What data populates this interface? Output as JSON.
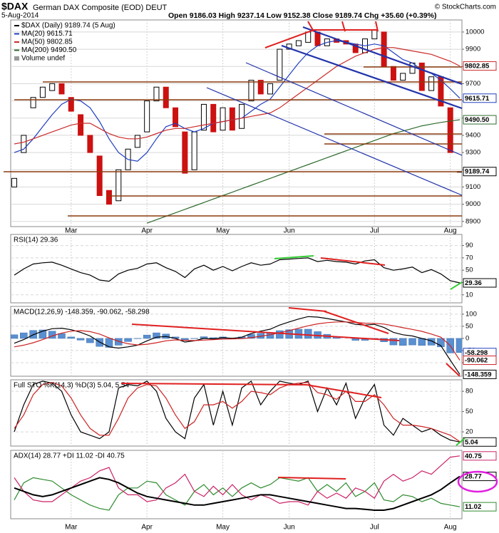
{
  "chart_data": [
    {
      "type": "candlestick",
      "title": "$DAX",
      "subtitle": "German DAX Composite (EOD) DEUT",
      "date": "5-Aug-2014",
      "quote": "Open 9186.03 High 9237.14 Low 9152.38 Close 9189.74 Chg +35.60 (+0.39%)",
      "source": "© StockCharts.com",
      "categories": [
        null,
        null,
        null,
        null,
        null,
        null,
        "Mar",
        null,
        null,
        null,
        null,
        null,
        null,
        null,
        "Apr",
        null,
        null,
        null,
        null,
        null,
        null,
        null,
        "May",
        null,
        null,
        null,
        null,
        null,
        null,
        "Jun",
        null,
        null,
        null,
        null,
        null,
        null,
        null,
        null,
        "Jul",
        null,
        null,
        null,
        null,
        null,
        null,
        null,
        "Aug",
        null
      ],
      "series": [
        {
          "name": "$DAX (Daily) 9189.74 (5 Aug)",
          "style": "candle",
          "color": "#000000",
          "down_color": "#cc1111",
          "open": [
            9100,
            9300,
            9560,
            9620,
            9660,
            9700,
            9620,
            9520,
            9400,
            9280,
            9080,
            9020,
            9200,
            9330,
            9420,
            9600,
            9680,
            9560,
            9420,
            9200,
            9430,
            9580,
            9430,
            9560,
            9440,
            9600,
            9720,
            9640,
            9720,
            9900,
            9920,
            9940,
            10000,
            9920,
            9960,
            9950,
            9930,
            9880,
            9960,
            10000,
            9800,
            9720,
            9760,
            9820,
            9660,
            9740,
            9560,
            9186.03
          ],
          "values": [
            9150,
            9400,
            9620,
            9680,
            9700,
            9640,
            9540,
            9400,
            9300,
            9050,
            9000,
            9200,
            9320,
            9400,
            9600,
            9680,
            9560,
            9450,
            9180,
            9420,
            9580,
            9420,
            9560,
            9430,
            9580,
            9720,
            9640,
            9700,
            9900,
            9930,
            9950,
            10000,
            9920,
            9960,
            9940,
            9930,
            9880,
            9960,
            10010,
            9800,
            9720,
            9760,
            9820,
            9660,
            9740,
            9570,
            9300,
            9189.74
          ]
        },
        {
          "name": "MA(20) 9615.71",
          "style": "line",
          "color": "#1f3fbf",
          "values": [
            9300,
            9320,
            9380,
            9450,
            9520,
            9580,
            9610,
            9600,
            9560,
            9480,
            9380,
            9300,
            9260,
            9250,
            9300,
            9380,
            9450,
            9470,
            9440,
            9420,
            9440,
            9470,
            9480,
            9490,
            9500,
            9540,
            9580,
            9610,
            9680,
            9750,
            9820,
            9880,
            9920,
            9940,
            9950,
            9940,
            9930,
            9920,
            9930,
            9920,
            9880,
            9840,
            9820,
            9780,
            9760,
            9720,
            9670,
            9615.71
          ]
        },
        {
          "name": "MA(50) 9802.85",
          "style": "line",
          "color": "#cc2a2a",
          "values": [
            9350,
            9360,
            9380,
            9400,
            9420,
            9440,
            9460,
            9470,
            9470,
            9440,
            9410,
            9390,
            9380,
            9380,
            9390,
            9410,
            9430,
            9440,
            9440,
            9450,
            9460,
            9470,
            9480,
            9490,
            9500,
            9510,
            9520,
            9530,
            9560,
            9600,
            9640,
            9680,
            9720,
            9760,
            9800,
            9830,
            9860,
            9880,
            9900,
            9910,
            9910,
            9900,
            9890,
            9880,
            9870,
            9850,
            9830,
            9802.85
          ]
        },
        {
          "name": "MA(200) 9490.50",
          "style": "line",
          "color": "#2e6b2e",
          "values": [
            null,
            null,
            null,
            null,
            null,
            null,
            null,
            null,
            null,
            null,
            null,
            null,
            null,
            null,
            8890,
            8910,
            8930,
            8950,
            8970,
            8990,
            9010,
            9030,
            9050,
            9070,
            9090,
            9110,
            9130,
            9150,
            9170,
            9190,
            9210,
            9230,
            9250,
            9270,
            9290,
            9310,
            9330,
            9350,
            9370,
            9390,
            9410,
            9425,
            9440,
            9455,
            9465,
            9475,
            9483,
            9490.5
          ]
        }
      ],
      "volume_legend": "Volume undef",
      "ylim": [
        8870,
        10070
      ],
      "yticks": [
        8900,
        9000,
        9100,
        9200,
        9300,
        9400,
        9500,
        9600,
        9700,
        9800,
        9900,
        10000
      ],
      "grid": true,
      "end_labels": [
        {
          "value": 9802.85,
          "label": "9802.85",
          "color": "#cc2a2a"
        },
        {
          "value": 9615.71,
          "label": "9615.71",
          "color": "#1f3fbf"
        },
        {
          "value": 9490.5,
          "label": "9490.50",
          "color": "#2e6b2e"
        },
        {
          "value": 9189.74,
          "label": "9189.74",
          "color": "#000000"
        }
      ]
    },
    {
      "type": "line",
      "title": "RSI(14) 29.36",
      "ylim": [
        -3,
        108
      ],
      "yticks": [
        10,
        30,
        50,
        70,
        90
      ],
      "grid": true,
      "series": [
        {
          "style": "line",
          "color": "#000000",
          "values": [
            42,
            52,
            60,
            62,
            63,
            58,
            52,
            46,
            42,
            34,
            32,
            44,
            50,
            53,
            60,
            62,
            54,
            48,
            38,
            52,
            58,
            50,
            56,
            49,
            56,
            62,
            58,
            60,
            67,
            68,
            69,
            70,
            64,
            66,
            64,
            63,
            60,
            65,
            67,
            54,
            50,
            52,
            55,
            46,
            51,
            44,
            33,
            29.36
          ]
        }
      ],
      "end_labels": [
        {
          "value": 29.36,
          "label": "29.36",
          "color": "#000000"
        }
      ]
    },
    {
      "type": "line",
      "title": "MACD(12,26,9) -148.359, -90.062, -58.298",
      "ylim": [
        -156,
        132
      ],
      "yticks": [
        -100,
        -50,
        0,
        50,
        100
      ],
      "grid": true,
      "series": [
        {
          "style": "histogram",
          "color": "#5a8fd0",
          "values": [
            15,
            23,
            33,
            35,
            30,
            20,
            6,
            -7,
            -18,
            -33,
            -37,
            -28,
            -13,
            -1,
            14,
            23,
            18,
            6,
            -7,
            -1,
            7,
            3,
            6,
            2,
            6,
            17,
            21,
            23,
            32,
            36,
            38,
            38,
            28,
            17,
            7,
            0,
            -8,
            -8,
            -4,
            -14,
            -27,
            -29,
            -27,
            -29,
            -28,
            -35,
            -60,
            -58.298
          ]
        },
        {
          "style": "line",
          "color": "#000000",
          "values": [
            -20,
            -5,
            15,
            30,
            40,
            42,
            36,
            25,
            10,
            -15,
            -35,
            -40,
            -35,
            -28,
            -10,
            5,
            8,
            0,
            -15,
            -10,
            0,
            -2,
            3,
            0,
            5,
            20,
            30,
            38,
            55,
            68,
            80,
            90,
            88,
            82,
            75,
            68,
            58,
            55,
            58,
            45,
            25,
            15,
            10,
            0,
            -10,
            -30,
            -90,
            -148.359
          ]
        },
        {
          "style": "line",
          "color": "#cc2222",
          "values": [
            -35,
            -28,
            -18,
            -5,
            10,
            22,
            30,
            32,
            28,
            18,
            2,
            -12,
            -22,
            -27,
            -24,
            -18,
            -10,
            -6,
            -8,
            -9,
            -7,
            -5,
            -3,
            -2,
            -1,
            3,
            9,
            15,
            23,
            32,
            42,
            52,
            60,
            65,
            68,
            68,
            66,
            63,
            62,
            59,
            52,
            44,
            37,
            29,
            18,
            5,
            -30,
            -90.062
          ]
        }
      ],
      "end_labels": [
        {
          "value": -58.298,
          "label": "-58.298",
          "color": "#1f3fbf"
        },
        {
          "value": -90.062,
          "label": "-90.062",
          "color": "#cc2222"
        },
        {
          "value": -148.359,
          "label": "-148.359",
          "color": "#000000"
        }
      ]
    },
    {
      "type": "line",
      "title": "Full STO %K(14,3) %D(3) 5.04, 5.54",
      "ylim": [
        -1,
        97
      ],
      "yticks": [
        20,
        50,
        80
      ],
      "grid": true,
      "series": [
        {
          "style": "line",
          "color": "#000000",
          "values": [
            20,
            60,
            90,
            95,
            92,
            80,
            45,
            20,
            15,
            10,
            20,
            85,
            90,
            88,
            95,
            80,
            40,
            20,
            10,
            70,
            90,
            30,
            80,
            30,
            85,
            95,
            60,
            80,
            95,
            92,
            90,
            95,
            50,
            85,
            60,
            92,
            40,
            70,
            90,
            30,
            15,
            40,
            30,
            20,
            25,
            15,
            8,
            5.04
          ]
        },
        {
          "style": "line",
          "color": "#cc2222",
          "values": [
            25,
            45,
            75,
            90,
            93,
            88,
            70,
            45,
            25,
            15,
            15,
            40,
            70,
            85,
            90,
            88,
            70,
            45,
            25,
            35,
            60,
            60,
            65,
            55,
            65,
            80,
            78,
            75,
            85,
            90,
            92,
            93,
            78,
            75,
            68,
            80,
            65,
            65,
            75,
            60,
            40,
            30,
            30,
            28,
            25,
            20,
            15,
            5.54
          ]
        }
      ],
      "end_labels": [
        {
          "value": 5.04,
          "label": "5.04",
          "color": "#000000"
        }
      ]
    },
    {
      "type": "line",
      "title": "ADX(14) 28.77 +DI 11.02 -DI 40.75",
      "ylim": [
        4,
        44
      ],
      "grid": false,
      "categories": [
        null,
        null,
        null,
        null,
        null,
        null,
        "Mar",
        null,
        null,
        null,
        null,
        null,
        null,
        null,
        "Apr",
        null,
        null,
        null,
        null,
        null,
        null,
        null,
        "May",
        null,
        null,
        null,
        null,
        null,
        null,
        "Jun",
        null,
        null,
        null,
        null,
        null,
        null,
        null,
        null,
        "Jul",
        null,
        null,
        null,
        null,
        null,
        null,
        null,
        "Aug",
        null
      ],
      "series": [
        {
          "style": "line",
          "color": "#2e8b2e",
          "values": [
            15,
            25,
            28,
            27,
            26,
            22,
            18,
            15,
            12,
            10,
            9,
            18,
            22,
            22,
            26,
            25,
            18,
            15,
            12,
            20,
            24,
            18,
            22,
            17,
            22,
            25,
            22,
            24,
            28,
            27,
            26,
            28,
            20,
            24,
            20,
            25,
            17,
            20,
            25,
            15,
            14,
            18,
            17,
            14,
            16,
            13,
            12,
            11.02
          ]
        },
        {
          "style": "line",
          "color": "#cc2266",
          "values": [
            28,
            20,
            15,
            14,
            14,
            18,
            22,
            26,
            28,
            32,
            34,
            22,
            18,
            18,
            14,
            15,
            22,
            25,
            30,
            20,
            17,
            23,
            18,
            24,
            18,
            15,
            18,
            16,
            13,
            14,
            14,
            12,
            20,
            16,
            19,
            16,
            22,
            20,
            16,
            26,
            30,
            26,
            28,
            32,
            30,
            35,
            40,
            40.75
          ]
        },
        {
          "style": "line",
          "color": "#000000",
          "width": 2,
          "values": [
            22,
            20,
            18,
            17,
            18,
            20,
            22,
            24,
            26,
            28,
            27,
            25,
            22,
            19,
            17,
            16,
            15,
            14,
            13,
            12,
            12,
            13,
            14,
            15,
            16,
            17,
            18,
            18,
            17,
            16,
            15,
            14,
            13,
            12,
            11,
            10,
            10,
            9.5,
            9,
            9,
            10,
            12,
            14,
            16,
            18,
            21,
            25,
            28.77
          ]
        }
      ],
      "end_labels": [
        {
          "value": 40.75,
          "label": "40.75",
          "color": "#cc2266"
        },
        {
          "value": 28.77,
          "label": "28.77",
          "color": "#000000"
        },
        {
          "value": 11.02,
          "label": "11.02",
          "color": "#2e8b2e"
        }
      ]
    }
  ]
}
